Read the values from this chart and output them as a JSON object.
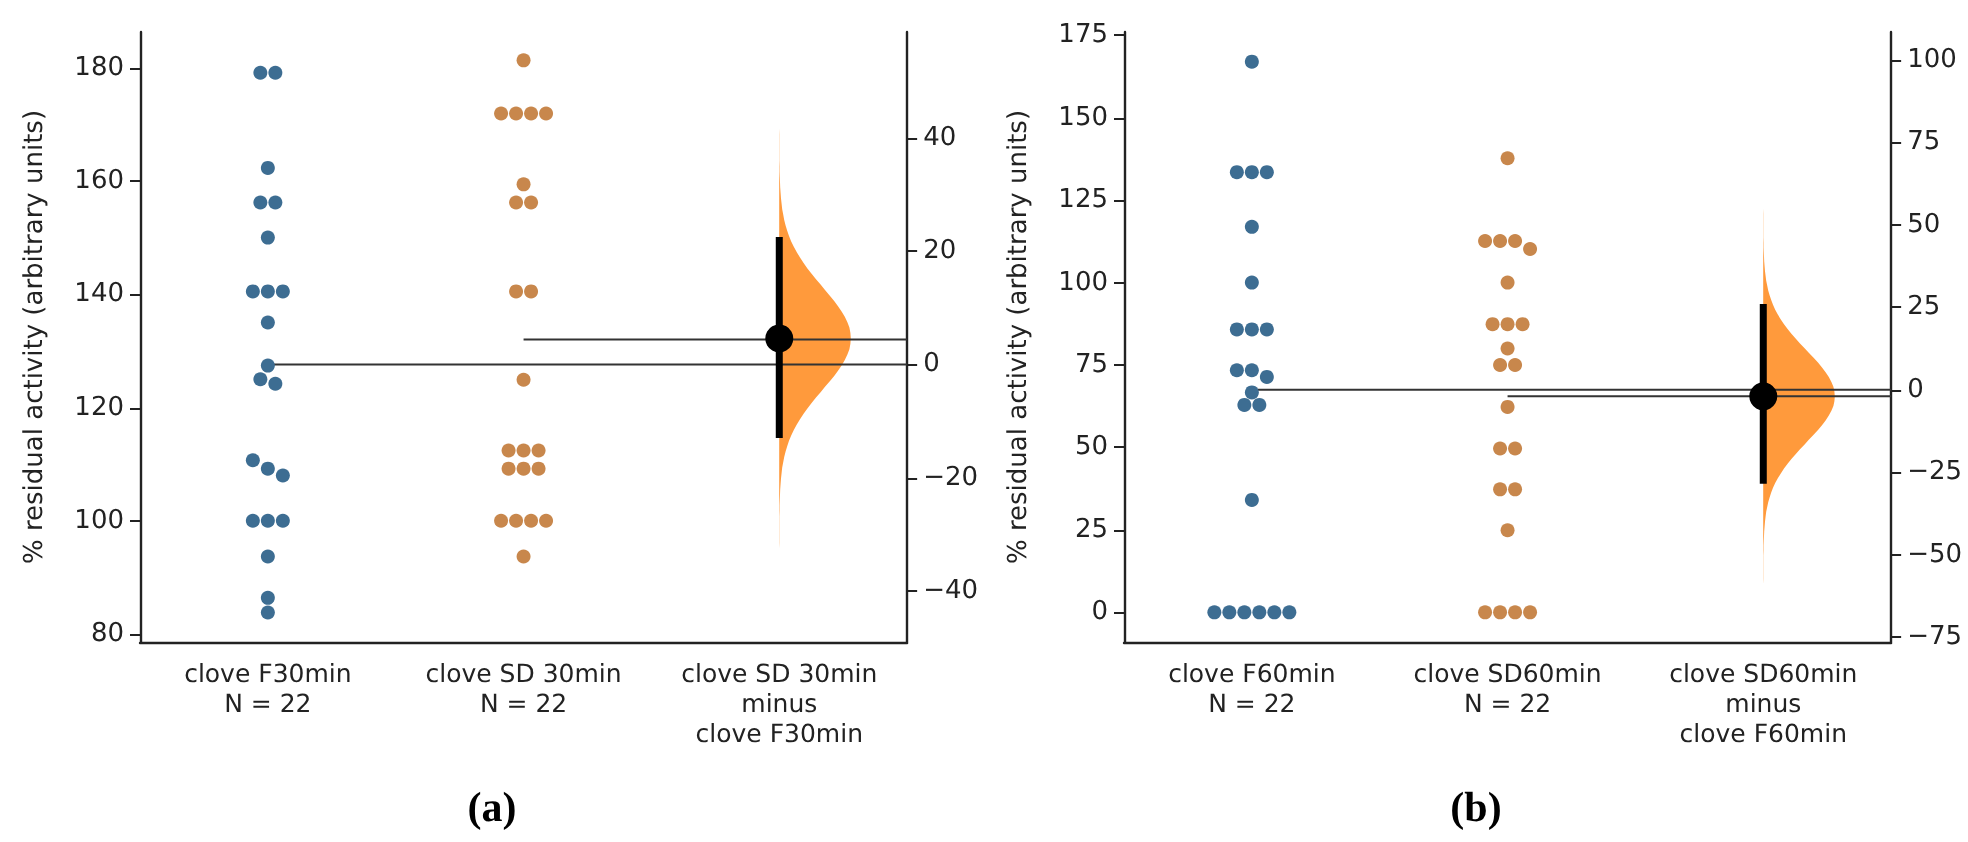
{
  "chart_data": [
    {
      "type": "scatter",
      "title": "(a)",
      "ylabel": "% residual activity (arbitrary units)",
      "categories": [
        "clove F30min\nN = 22",
        "clove SD 30min\nN = 22",
        "clove SD 30min\nminus\nclove F30min"
      ],
      "ylim": [
        78.6,
        186.3
      ],
      "yticks": [
        80,
        100,
        120,
        140,
        160,
        180
      ],
      "y2lim": [
        -49,
        58.7
      ],
      "y2ticks": [
        {
          "value": -40,
          "label": "−40"
        },
        {
          "value": -20,
          "label": "−20"
        },
        0,
        20,
        40
      ],
      "grid": false,
      "marker": "circle",
      "series": [
        {
          "color": "#3d6d92",
          "x": [
            "clove F30min\nN = 22",
            "clove F30min\nN = 22",
            "clove F30min\nN = 22",
            "clove F30min\nN = 22",
            "clove F30min\nN = 22",
            "clove F30min\nN = 22",
            "clove F30min\nN = 22",
            "clove F30min\nN = 22",
            "clove F30min\nN = 22",
            "clove F30min\nN = 22",
            "clove F30min\nN = 22",
            "clove F30min\nN = 22",
            "clove F30min\nN = 22",
            "clove F30min\nN = 22",
            "clove F30min\nN = 22",
            "clove F30min\nN = 22",
            "clove F30min\nN = 22",
            "clove F30min\nN = 22",
            "clove F30min\nN = 22",
            "clove F30min\nN = 22",
            "clove F30min\nN = 22",
            "clove F30min\nN = 22"
          ],
          "values": [
            179.1,
            179.1,
            162.3,
            156.2,
            156.2,
            150,
            140.5,
            140.5,
            140.5,
            135,
            127.4,
            125,
            124.2,
            110.7,
            109.2,
            108,
            100,
            100,
            100,
            93.7,
            86.4,
            83.8
          ]
        },
        {
          "color": "#c8874c",
          "x": [
            "clove SD 30min\nN = 22",
            "clove SD 30min\nN = 22",
            "clove SD 30min\nN = 22",
            "clove SD 30min\nN = 22",
            "clove SD 30min\nN = 22",
            "clove SD 30min\nN = 22",
            "clove SD 30min\nN = 22",
            "clove SD 30min\nN = 22",
            "clove SD 30min\nN = 22",
            "clove SD 30min\nN = 22",
            "clove SD 30min\nN = 22",
            "clove SD 30min\nN = 22",
            "clove SD 30min\nN = 22",
            "clove SD 30min\nN = 22",
            "clove SD 30min\nN = 22",
            "clove SD 30min\nN = 22",
            "clove SD 30min\nN = 22",
            "clove SD 30min\nN = 22",
            "clove SD 30min\nN = 22",
            "clove SD 30min\nN = 22",
            "clove SD 30min\nN = 22",
            "clove SD 30min\nN = 22"
          ],
          "values": [
            181.3,
            171.9,
            171.9,
            171.9,
            171.9,
            159.4,
            156.2,
            156.2,
            140.5,
            140.5,
            124.9,
            112.4,
            112.4,
            112.4,
            109.2,
            109.2,
            109.2,
            100,
            100,
            100,
            100,
            93.7
          ]
        },
        {
          "axis": "y2",
          "color": "#000000",
          "x": [
            "clove SD 30min\nminus\nclove F30min"
          ],
          "values": [
            4.6
          ],
          "errors": [
            [
              -13,
              22.5
            ]
          ]
        }
      ],
      "ref_lines": [
        {
          "axis": "y",
          "value": 127.6,
          "color": "#333333"
        },
        {
          "axis": "y",
          "value": 132,
          "color": "#333333"
        }
      ]
    },
    {
      "type": "scatter",
      "title": "(b)",
      "ylabel": "% residual activity (arbitrary units)",
      "categories": [
        "clove F60min\nN = 22",
        "clove SD60min\nN = 22",
        "clove SD60min\nminus\nclove F60min"
      ],
      "ylim": [
        -9,
        176
      ],
      "yticks": [
        0,
        25,
        50,
        75,
        100,
        125,
        150,
        175
      ],
      "y2lim": [
        -76.5,
        108.5
      ],
      "y2ticks": [
        {
          "value": -75,
          "label": "−75"
        },
        {
          "value": -50,
          "label": "−50"
        },
        {
          "value": -25,
          "label": "−25"
        },
        0,
        25,
        50,
        75,
        100
      ],
      "grid": false,
      "marker": "circle",
      "series": [
        {
          "color": "#3d6d92",
          "x": [
            "clove F60min\nN = 22",
            "clove F60min\nN = 22",
            "clove F60min\nN = 22",
            "clove F60min\nN = 22",
            "clove F60min\nN = 22",
            "clove F60min\nN = 22",
            "clove F60min\nN = 22",
            "clove F60min\nN = 22",
            "clove F60min\nN = 22",
            "clove F60min\nN = 22",
            "clove F60min\nN = 22",
            "clove F60min\nN = 22",
            "clove F60min\nN = 22",
            "clove F60min\nN = 22",
            "clove F60min\nN = 22",
            "clove F60min\nN = 22",
            "clove F60min\nN = 22",
            "clove F60min\nN = 22",
            "clove F60min\nN = 22",
            "clove F60min\nN = 22",
            "clove F60min\nN = 22",
            "clove F60min\nN = 22"
          ],
          "values": [
            167,
            133.5,
            133.5,
            133.5,
            116.9,
            100,
            85.8,
            85.8,
            85.8,
            73.4,
            73.4,
            71.4,
            66.7,
            62.9,
            62.9,
            34.1,
            0,
            0,
            0,
            0,
            0,
            0
          ]
        },
        {
          "color": "#c8874c",
          "x": [
            "clove SD60min\nN = 22",
            "clove SD60min\nN = 22",
            "clove SD60min\nN = 22",
            "clove SD60min\nN = 22",
            "clove SD60min\nN = 22",
            "clove SD60min\nN = 22",
            "clove SD60min\nN = 22",
            "clove SD60min\nN = 22",
            "clove SD60min\nN = 22",
            "clove SD60min\nN = 22",
            "clove SD60min\nN = 22",
            "clove SD60min\nN = 22",
            "clove SD60min\nN = 22",
            "clove SD60min\nN = 22",
            "clove SD60min\nN = 22",
            "clove SD60min\nN = 22",
            "clove SD60min\nN = 22",
            "clove SD60min\nN = 22",
            "clove SD60min\nN = 22",
            "clove SD60min\nN = 22",
            "clove SD60min\nN = 22",
            "clove SD60min\nN = 22"
          ],
          "values": [
            137.7,
            112.6,
            112.6,
            112.6,
            110.2,
            100,
            87.4,
            87.4,
            87.4,
            80,
            75,
            75,
            62.3,
            49.7,
            49.7,
            37.3,
            37.3,
            24.9,
            0,
            0,
            0,
            0
          ]
        },
        {
          "axis": "y2",
          "color": "#000000",
          "x": [
            "clove SD60min\nminus\nclove F60min"
          ],
          "values": [
            -2
          ],
          "errors": [
            [
              -28.5,
              26
            ]
          ]
        }
      ],
      "ref_lines": [
        {
          "axis": "y",
          "value": 67.5,
          "color": "#333333"
        },
        {
          "axis": "y",
          "value": 65.5,
          "color": "#333333"
        }
      ]
    }
  ]
}
